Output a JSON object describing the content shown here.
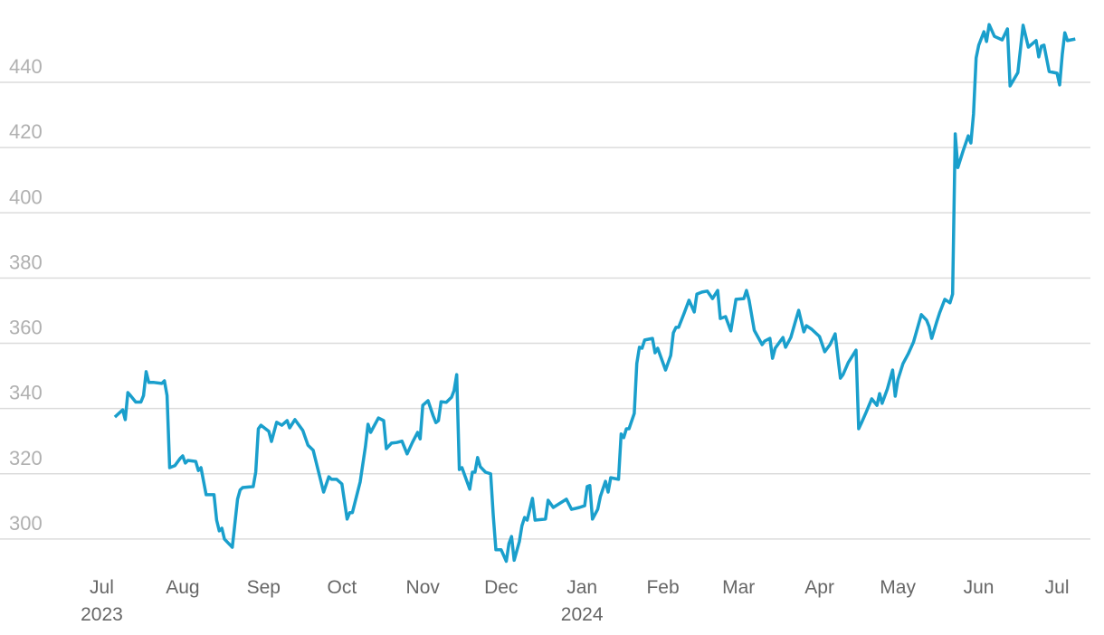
{
  "chart_data": {
    "type": "line",
    "color": "#1a9fcc",
    "grid": true,
    "xlim": [
      -39,
      384
    ],
    "ylim": [
      290,
      460
    ],
    "yticks": [
      300,
      320,
      340,
      360,
      380,
      400,
      420,
      440
    ],
    "xticks": [
      {
        "value": 0,
        "label": "Jul",
        "year": "2023"
      },
      {
        "value": 31,
        "label": "Aug"
      },
      {
        "value": 62,
        "label": "Sep"
      },
      {
        "value": 92,
        "label": "Oct"
      },
      {
        "value": 123,
        "label": "Nov"
      },
      {
        "value": 153,
        "label": "Dec"
      },
      {
        "value": 184,
        "label": "Jan",
        "year": "2024"
      },
      {
        "value": 215,
        "label": "Feb"
      },
      {
        "value": 244,
        "label": "Mar"
      },
      {
        "value": 275,
        "label": "Apr"
      },
      {
        "value": 305,
        "label": "May"
      },
      {
        "value": 336,
        "label": "Jun"
      },
      {
        "value": 366,
        "label": "Jul"
      }
    ],
    "x": [
      5,
      8,
      9,
      10,
      11,
      13,
      15,
      16,
      17,
      18,
      20,
      23,
      24,
      25,
      26,
      28,
      30,
      31,
      32,
      33,
      36,
      37,
      38,
      40,
      43,
      44,
      45,
      46,
      47,
      50,
      52,
      53,
      54,
      58,
      59,
      60,
      61,
      64,
      65,
      67,
      69,
      71,
      72,
      74,
      77,
      79,
      81,
      85,
      87,
      88,
      90,
      92,
      94,
      95,
      96,
      99,
      101,
      102,
      103,
      106,
      108,
      109,
      111,
      113,
      115,
      117,
      119,
      121,
      122,
      123,
      125,
      127,
      128,
      129,
      130,
      132,
      134,
      135,
      136,
      137,
      138,
      141,
      142,
      143,
      144,
      145,
      147,
      149,
      150,
      151,
      153,
      155,
      156,
      157,
      158,
      160,
      161,
      162,
      163,
      165,
      166,
      170,
      171,
      173,
      178,
      180,
      183,
      185,
      186,
      187,
      188,
      190,
      191,
      193,
      194,
      195,
      198,
      199,
      200,
      201,
      202,
      204,
      205,
      206,
      207,
      208,
      211,
      212,
      213,
      216,
      218,
      219,
      220,
      221,
      223,
      225,
      227,
      228,
      230,
      232,
      234,
      236,
      237,
      239,
      241,
      243,
      246,
      247,
      248,
      250,
      253,
      254,
      256,
      257,
      258,
      261,
      262,
      264,
      266,
      267,
      269,
      270,
      272,
      275,
      277,
      279,
      281,
      283,
      284,
      286,
      289,
      290,
      291,
      293,
      295,
      297,
      298,
      299,
      301,
      303,
      304,
      305,
      307,
      309,
      311,
      314,
      316,
      317,
      318,
      320,
      321,
      323,
      325,
      326,
      327,
      328,
      330,
      332,
      333,
      334,
      335,
      336,
      338,
      339,
      340,
      342,
      345,
      347,
      348,
      351,
      353,
      355,
      358,
      359,
      360,
      361,
      363,
      366,
      367,
      368,
      369,
      370,
      373
    ],
    "values": [
      337.4,
      339.6,
      336.6,
      344.9,
      344,
      342,
      342,
      344,
      351.3,
      348,
      348,
      347.7,
      348.5,
      344,
      321.9,
      322.5,
      324.7,
      325.5,
      323.3,
      324.1,
      323.8,
      321,
      321.9,
      313.6,
      313.6,
      305.8,
      302.5,
      303.3,
      300,
      297.5,
      312.2,
      315,
      315.8,
      316.1,
      320.5,
      333.8,
      334.9,
      333,
      329.9,
      335.8,
      334.9,
      336.3,
      334.1,
      336.6,
      333.3,
      328.8,
      327.2,
      314.4,
      319.1,
      318.3,
      318.3,
      316.9,
      306.1,
      308.1,
      308.1,
      317.5,
      328.3,
      335.2,
      332.7,
      337.1,
      336.3,
      327.7,
      329.4,
      329.6,
      330,
      326.1,
      329.6,
      332.7,
      330.7,
      341,
      342.4,
      337.7,
      335.7,
      336.3,
      342.1,
      341.9,
      343.5,
      345.5,
      350.4,
      321.3,
      321.9,
      315.3,
      320.5,
      320.5,
      325,
      322.2,
      320.5,
      320,
      307.2,
      296.7,
      296.7,
      293.2,
      298.6,
      300.8,
      293.5,
      299.2,
      304.1,
      306.6,
      305.8,
      312.5,
      305.8,
      306.1,
      311.9,
      309.7,
      312.2,
      309.1,
      309.7,
      310.2,
      316.1,
      316.4,
      306.1,
      309.1,
      313,
      317.7,
      314.4,
      318.8,
      318.3,
      332.2,
      331.1,
      333.8,
      333.8,
      338.5,
      353.8,
      358.8,
      358.5,
      361,
      361.5,
      357.1,
      358.5,
      351.8,
      356.3,
      363.2,
      364.9,
      364.9,
      369,
      373.2,
      369.6,
      375.1,
      375.7,
      376,
      373.7,
      376.2,
      367.6,
      368.2,
      363.8,
      373.5,
      373.7,
      376.2,
      373.2,
      364,
      359.6,
      360.7,
      361.5,
      355.4,
      358.5,
      361.8,
      358.8,
      361.8,
      367.4,
      370.1,
      363.5,
      365.4,
      364.3,
      362.1,
      357.4,
      359.6,
      362.9,
      349.3,
      350.4,
      354.1,
      357.9,
      333.8,
      335.5,
      339.1,
      343,
      341,
      344.6,
      341.6,
      346,
      351.8,
      343.8,
      348.8,
      353.8,
      356.8,
      360.4,
      368.8,
      367.1,
      365.1,
      361.5,
      366.8,
      369.3,
      373.5,
      372.4,
      375.1,
      424.2,
      413.9,
      419,
      423.6,
      421.4,
      430.3,
      447.5,
      451.4,
      455.5,
      452.5,
      457.7,
      454.1,
      453,
      456.4,
      438.9,
      443,
      457.5,
      450.8,
      452.8,
      447.8,
      451.1,
      451.4,
      443.3,
      442.8,
      439.2,
      448.6,
      455.2,
      452.8,
      453.3
    ]
  }
}
